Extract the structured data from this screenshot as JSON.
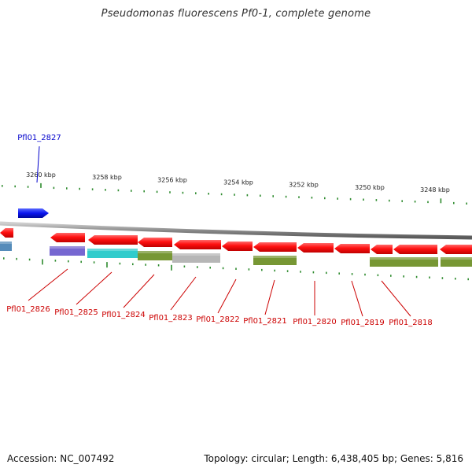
{
  "title": "Pseudomonas fluorescens Pf0-1, complete genome",
  "footer": {
    "accession": "Accession: NC_007492",
    "summary": "Topology: circular; Length: 6,438,405 bp; Genes: 5,816"
  },
  "colors": {
    "forward_gene": "#1a2eff",
    "reverse_gene": "#ff1a1a",
    "backbone": "#999999",
    "ticks": "#2e8b2e",
    "label_forward": "#0000cc",
    "label_reverse": "#cc0000"
  },
  "ticks": [
    {
      "label": "3260 kbp",
      "major": true
    },
    {
      "label": "3258 kbp",
      "major": true
    },
    {
      "label": "3256 kbp",
      "major": true
    },
    {
      "label": "3254 kbp",
      "major": true
    },
    {
      "label": "3252 kbp",
      "major": true
    },
    {
      "label": "3250 kbp",
      "major": true
    },
    {
      "label": "3248 kbp",
      "major": true
    }
  ],
  "genes": [
    {
      "name": "Pfl01_2827",
      "strand": "forward",
      "labeled": true
    },
    {
      "name": "Pfl01_2826",
      "strand": "reverse",
      "labeled": true
    },
    {
      "name": "Pfl01_2825",
      "strand": "reverse",
      "labeled": true
    },
    {
      "name": "Pfl01_2824",
      "strand": "reverse",
      "labeled": true
    },
    {
      "name": "Pfl01_2823",
      "strand": "reverse",
      "labeled": true
    },
    {
      "name": "Pfl01_2822",
      "strand": "reverse",
      "labeled": true
    },
    {
      "name": "Pfl01_2821",
      "strand": "reverse",
      "labeled": true
    },
    {
      "name": "Pfl01_2820",
      "strand": "reverse",
      "labeled": true
    },
    {
      "name": "Pfl01_2819",
      "strand": "reverse",
      "labeled": true
    },
    {
      "name": "Pfl01_2818",
      "strand": "reverse",
      "labeled": true
    }
  ],
  "cog_colors": [
    "#6a5acd",
    "#20c8c8",
    "#6b8e23",
    "#b0b0b0",
    "#6b8e23",
    "#6b8e23",
    "#6b8e23",
    "#4682b4"
  ]
}
